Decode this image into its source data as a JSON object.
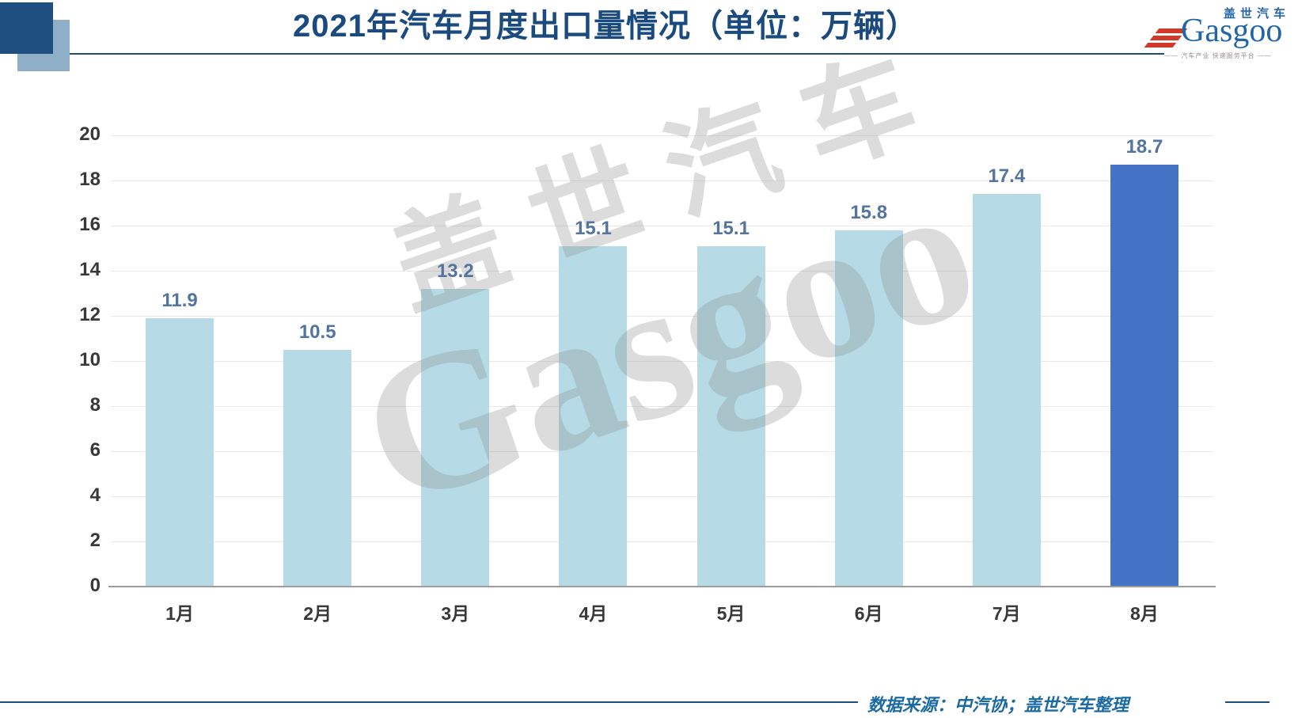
{
  "header": {
    "title": "2021年汽车月度出口量情况（单位：万辆）"
  },
  "logo": {
    "cn": "盖世汽车",
    "en": "Gasgoo",
    "tagline": "—— 汽车产业 快速服务平台 ——"
  },
  "watermark": {
    "cn": "盖世汽车",
    "en": "Gasgoo"
  },
  "footer": {
    "source": "数据来源：中汽协；盖世汽车整理"
  },
  "chart_data": {
    "type": "bar",
    "title": "2021年汽车月度出口量情况（单位：万辆）",
    "categories": [
      "1月",
      "2月",
      "3月",
      "4月",
      "5月",
      "6月",
      "7月",
      "8月"
    ],
    "values": [
      11.9,
      10.5,
      13.2,
      15.1,
      15.1,
      15.8,
      17.4,
      18.7
    ],
    "xlabel": "",
    "ylabel": "",
    "ylim": [
      0,
      20
    ],
    "ytick_step": 2,
    "grid": true,
    "legend": false,
    "bar_color_default": "#b6dbe7",
    "bar_color_highlight": "#4472c4",
    "highlight_index": 7,
    "value_label_color": "#54749e"
  }
}
